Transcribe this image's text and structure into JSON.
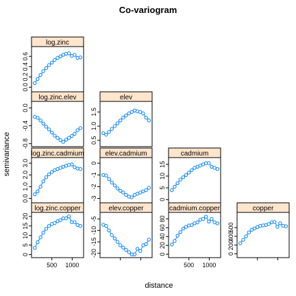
{
  "title": "Co-variogram",
  "xlabel": "distance",
  "ylabel": "semivariance",
  "colors": {
    "strip": "#ffe5cc",
    "series": "#0080ff",
    "frame": "#000000"
  },
  "chart_data": [
    {
      "type": "scatter",
      "title": "log.zinc",
      "row": 1,
      "col": 1,
      "yticks": [
        "0.0",
        "0.2",
        "0.4",
        "0.6"
      ],
      "ylim": [
        -0.05,
        0.75
      ],
      "x": [
        80,
        150,
        220,
        290,
        360,
        430,
        500,
        570,
        640,
        710,
        780,
        850,
        920,
        990,
        1060,
        1130,
        1200
      ],
      "y": [
        0.08,
        0.16,
        0.24,
        0.31,
        0.37,
        0.43,
        0.48,
        0.53,
        0.57,
        0.6,
        0.63,
        0.65,
        0.66,
        0.61,
        0.63,
        0.57,
        0.58
      ]
    },
    {
      "type": "scatter",
      "title": "log.zinc.elev",
      "row": 2,
      "col": 1,
      "yticks": [
        "-0.8",
        "-0.4",
        "0.0"
      ],
      "ylim": [
        -0.82,
        0.1
      ],
      "x": [
        80,
        150,
        220,
        290,
        360,
        430,
        500,
        570,
        640,
        710,
        780,
        850,
        920,
        990,
        1060,
        1130,
        1200
      ],
      "y": [
        -0.2,
        -0.22,
        -0.28,
        -0.35,
        -0.42,
        -0.48,
        -0.55,
        -0.62,
        -0.67,
        -0.72,
        -0.76,
        -0.71,
        -0.67,
        -0.63,
        -0.58,
        -0.5,
        -0.45
      ]
    },
    {
      "type": "scatter",
      "title": "log.zinc.cadmium",
      "row": 3,
      "col": 1,
      "yticks": [
        "0.0",
        "1.0",
        "2.0",
        "3.0"
      ],
      "ylim": [
        -0.2,
        3.3
      ],
      "x": [
        80,
        150,
        220,
        290,
        360,
        430,
        500,
        570,
        640,
        710,
        780,
        850,
        920,
        990,
        1060,
        1130,
        1200
      ],
      "y": [
        0.35,
        0.6,
        1.0,
        1.45,
        1.8,
        2.05,
        2.25,
        2.4,
        2.5,
        2.6,
        2.7,
        2.78,
        2.85,
        2.9,
        2.65,
        2.55,
        2.5
      ]
    },
    {
      "type": "scatter",
      "title": "log.zinc.copper",
      "row": 4,
      "col": 1,
      "yticks": [
        "0",
        "5",
        "10",
        "15",
        "20"
      ],
      "ylim": [
        -0.5,
        21
      ],
      "x": [
        80,
        150,
        220,
        290,
        360,
        430,
        500,
        570,
        640,
        710,
        780,
        850,
        920,
        990,
        1060,
        1130,
        1200
      ],
      "y": [
        3.5,
        6.5,
        9.0,
        11.5,
        13.5,
        15.0,
        16.0,
        16.5,
        17.5,
        18.0,
        19.0,
        19.0,
        20.0,
        17.0,
        17.0,
        15.5,
        15.0
      ]
    },
    {
      "type": "scatter",
      "title": "elev",
      "row": 2,
      "col": 2,
      "yticks": [
        "0.5",
        "1.0",
        "1.5"
      ],
      "ylim": [
        0.35,
        1.8
      ],
      "x": [
        80,
        150,
        220,
        290,
        360,
        430,
        500,
        570,
        640,
        710,
        780,
        850,
        920,
        990,
        1060,
        1130,
        1200
      ],
      "y": [
        0.75,
        0.7,
        0.8,
        0.9,
        1.0,
        1.1,
        1.2,
        1.3,
        1.38,
        1.45,
        1.5,
        1.55,
        1.52,
        1.5,
        1.45,
        1.3,
        1.2
      ]
    },
    {
      "type": "scatter",
      "title": "elev.cadmium",
      "row": 3,
      "col": 2,
      "yticks": [
        "-3",
        "-2",
        "-1",
        "0"
      ],
      "ylim": [
        -3.2,
        0.3
      ],
      "x": [
        80,
        150,
        220,
        290,
        360,
        430,
        500,
        570,
        640,
        710,
        780,
        850,
        920,
        990,
        1060,
        1130,
        1200
      ],
      "y": [
        -1.0,
        -1.05,
        -1.35,
        -1.65,
        -1.9,
        -2.15,
        -2.35,
        -2.5,
        -2.7,
        -2.85,
        -2.9,
        -2.7,
        -2.6,
        -2.5,
        -2.4,
        -2.3,
        -2.1
      ]
    },
    {
      "type": "scatter",
      "title": "elev.copper",
      "row": 4,
      "col": 2,
      "yticks": [
        "-20",
        "-15",
        "-10",
        "-5"
      ],
      "ylim": [
        -21,
        -3
      ],
      "x": [
        80,
        150,
        220,
        290,
        360,
        430,
        500,
        570,
        640,
        710,
        780,
        850,
        920,
        990,
        1060,
        1130,
        1200
      ],
      "y": [
        -7.5,
        -8.0,
        -10.0,
        -12.0,
        -13.5,
        -15.0,
        -16.5,
        -17.5,
        -18.5,
        -19.5,
        -20.5,
        -20.5,
        -18.0,
        -19.0,
        -16.5,
        -16.0,
        -14.0
      ]
    },
    {
      "type": "scatter",
      "title": "cadmium",
      "row": 3,
      "col": 3,
      "yticks": [
        "0",
        "5",
        "10",
        "15"
      ],
      "ylim": [
        -0.5,
        17
      ],
      "x": [
        80,
        150,
        220,
        290,
        360,
        430,
        500,
        570,
        640,
        710,
        780,
        850,
        920,
        990,
        1060,
        1130,
        1200
      ],
      "y": [
        4.0,
        5.5,
        7.0,
        8.5,
        9.5,
        10.5,
        11.5,
        12.5,
        13.5,
        14.0,
        14.5,
        15.0,
        15.5,
        15.5,
        14.0,
        13.5,
        13.0
      ]
    },
    {
      "type": "scatter",
      "title": "cadmium.copper",
      "row": 4,
      "col": 3,
      "yticks": [
        "0",
        "20",
        "40",
        "60",
        "80"
      ],
      "ylim": [
        -3,
        90
      ],
      "x": [
        80,
        150,
        220,
        290,
        360,
        430,
        500,
        570,
        640,
        710,
        780,
        850,
        920,
        990,
        1060,
        1130,
        1200
      ],
      "y": [
        22,
        30,
        42,
        50,
        58,
        62,
        65,
        66,
        70,
        72,
        78,
        80,
        85,
        74,
        80,
        72,
        70
      ]
    },
    {
      "type": "scatter",
      "title": "copper",
      "row": 4,
      "col": 4,
      "yticks": [
        "0",
        "200",
        "400",
        "600"
      ],
      "ylim": [
        -40,
        900
      ],
      "x": [
        80,
        150,
        220,
        290,
        360,
        430,
        500,
        570,
        640,
        710,
        780,
        850,
        920,
        990,
        1060,
        1130,
        1200
      ],
      "y": [
        240,
        320,
        400,
        490,
        550,
        580,
        610,
        640,
        650,
        660,
        680,
        720,
        730,
        620,
        700,
        640,
        630
      ]
    }
  ],
  "xaxis": {
    "ticks": [
      "500",
      "1000"
    ],
    "tick_values": [
      500,
      1000
    ],
    "xlim": [
      0,
      1280
    ]
  }
}
